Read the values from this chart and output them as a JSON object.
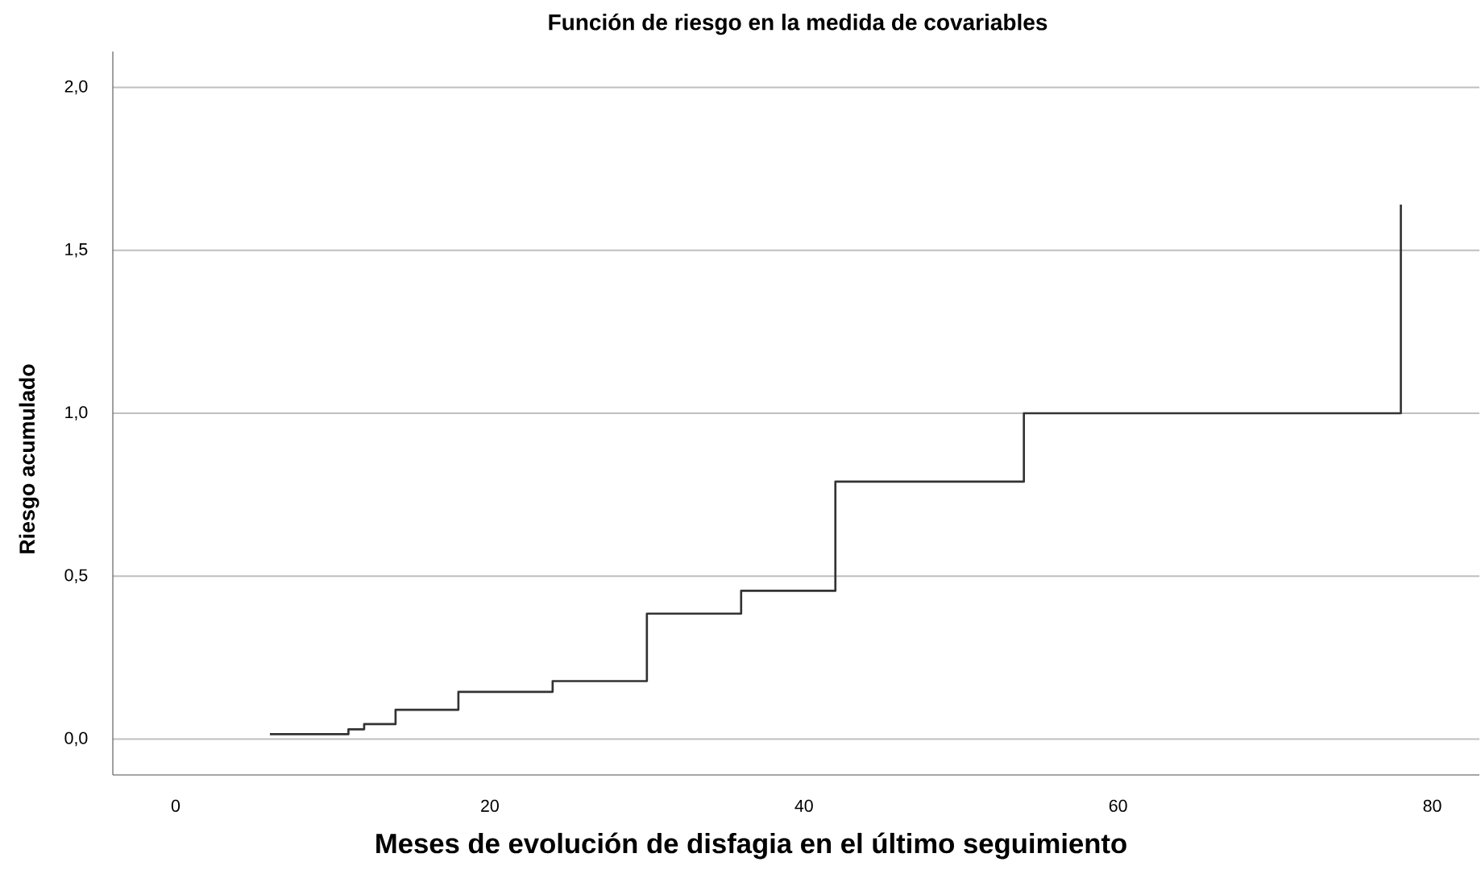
{
  "chart_data": {
    "type": "step",
    "title": "Función de riesgo en la medida de covariables",
    "xlabel": "Meses de evolución de disfagia en el último seguimiento",
    "ylabel": "Riesgo acumulado",
    "x": [
      6,
      11,
      12,
      14,
      18,
      24,
      30,
      36,
      42,
      54,
      78
    ],
    "values": [
      0.015,
      0.03,
      0.046,
      0.09,
      0.145,
      0.178,
      0.385,
      0.455,
      0.79,
      1.0,
      1.64
    ],
    "color": "#333333",
    "xlim": [
      -4,
      83
    ],
    "ylim": [
      -0.11,
      2.11
    ],
    "xticks": [
      0,
      20,
      40,
      60,
      80
    ],
    "yticks": [
      {
        "value": 0,
        "label": "0,0"
      },
      {
        "value": 0.5,
        "label": "0,5"
      },
      {
        "value": 1,
        "label": "1,0"
      },
      {
        "value": 1.5,
        "label": "1,5"
      },
      {
        "value": 2,
        "label": "2,0"
      }
    ],
    "grid": "y",
    "marker": "none",
    "line_style": "solid"
  }
}
